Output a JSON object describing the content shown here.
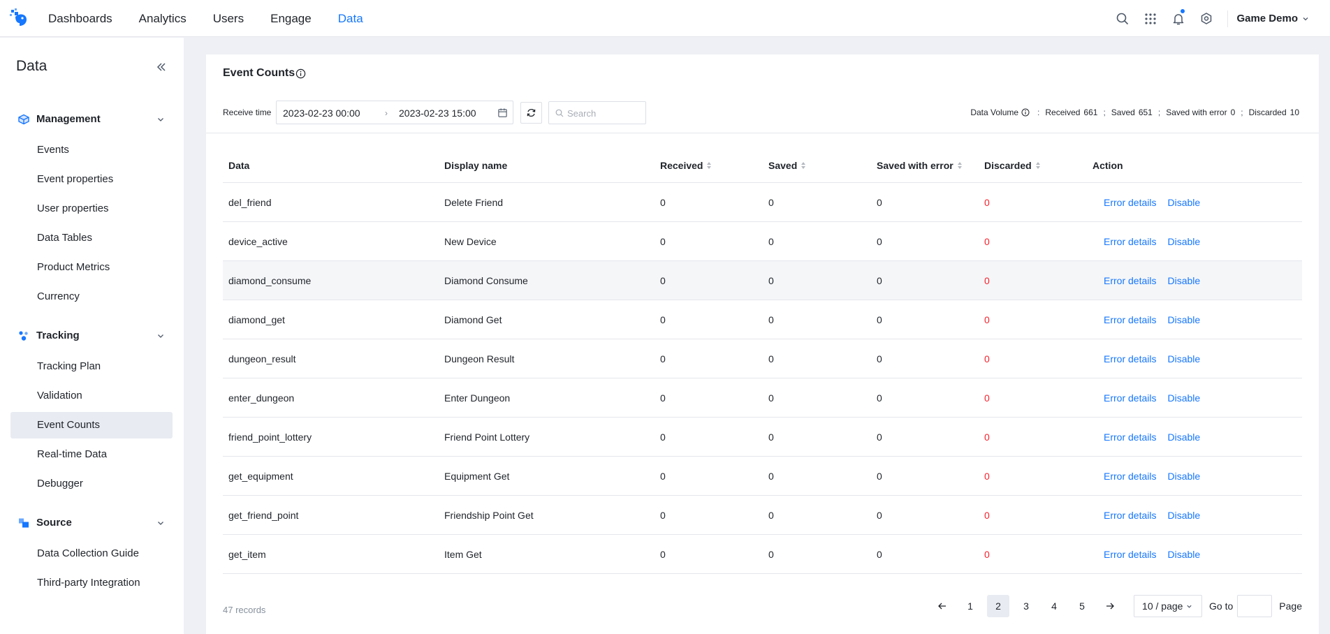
{
  "nav": {
    "items": [
      {
        "label": "Dashboards",
        "active": false
      },
      {
        "label": "Analytics",
        "active": false
      },
      {
        "label": "Users",
        "active": false
      },
      {
        "label": "Engage",
        "active": false
      },
      {
        "label": "Data",
        "active": true
      }
    ],
    "project": "Game Demo",
    "accent_color": "#1677ff"
  },
  "sidebar": {
    "title": "Data",
    "groups": [
      {
        "label": "Management",
        "icon": "cube-icon",
        "items": [
          "Events",
          "Event properties",
          "User properties",
          "Data Tables",
          "Product Metrics",
          "Currency"
        ]
      },
      {
        "label": "Tracking",
        "icon": "tracking-icon",
        "items": [
          "Tracking Plan",
          "Validation",
          "Event Counts",
          "Real-time Data",
          "Debugger"
        ]
      },
      {
        "label": "Source",
        "icon": "source-icon",
        "items": [
          "Data Collection Guide",
          "Third-party Integration"
        ]
      }
    ],
    "active_item": "Event Counts"
  },
  "page": {
    "title": "Event Counts",
    "receive_time_label": "Receive time",
    "date_from": "2023-02-23 00:00",
    "date_to": "2023-02-23 15:00",
    "search_placeholder": "Search",
    "volume": {
      "label": "Data Volume",
      "received_label": "Received",
      "received": "661",
      "saved_label": "Saved",
      "saved": "651",
      "saved_error_label": "Saved with error",
      "saved_error": "0",
      "discarded_label": "Discarded",
      "discarded": "10"
    }
  },
  "table": {
    "columns": [
      "Data",
      "Display name",
      "Received",
      "Saved",
      "Saved with error",
      "Discarded",
      "Action"
    ],
    "rows": [
      {
        "data": "del_friend",
        "display": "Delete Friend",
        "received": "0",
        "saved": "0",
        "saved_error": "0",
        "discarded": "0"
      },
      {
        "data": "device_active",
        "display": "New Device",
        "received": "0",
        "saved": "0",
        "saved_error": "0",
        "discarded": "0"
      },
      {
        "data": "diamond_consume",
        "display": "Diamond Consume",
        "received": "0",
        "saved": "0",
        "saved_error": "0",
        "discarded": "0"
      },
      {
        "data": "diamond_get",
        "display": "Diamond Get",
        "received": "0",
        "saved": "0",
        "saved_error": "0",
        "discarded": "0"
      },
      {
        "data": "dungeon_result",
        "display": "Dungeon Result",
        "received": "0",
        "saved": "0",
        "saved_error": "0",
        "discarded": "0"
      },
      {
        "data": "enter_dungeon",
        "display": "Enter Dungeon",
        "received": "0",
        "saved": "0",
        "saved_error": "0",
        "discarded": "0"
      },
      {
        "data": "friend_point_lottery",
        "display": "Friend Point Lottery",
        "received": "0",
        "saved": "0",
        "saved_error": "0",
        "discarded": "0"
      },
      {
        "data": "get_equipment",
        "display": "Equipment Get",
        "received": "0",
        "saved": "0",
        "saved_error": "0",
        "discarded": "0"
      },
      {
        "data": "get_friend_point",
        "display": "Friendship Point Get",
        "received": "0",
        "saved": "0",
        "saved_error": "0",
        "discarded": "0"
      },
      {
        "data": "get_item",
        "display": "Item Get",
        "received": "0",
        "saved": "0",
        "saved_error": "0",
        "discarded": "0"
      }
    ],
    "action_error": "Error details",
    "action_disable": "Disable",
    "hover_row": 2
  },
  "footer": {
    "records": "47 records",
    "pages": [
      "1",
      "2",
      "3",
      "4",
      "5"
    ],
    "current_page": "2",
    "page_size": "10 / page",
    "goto_label": "Go to",
    "page_label": "Page"
  }
}
